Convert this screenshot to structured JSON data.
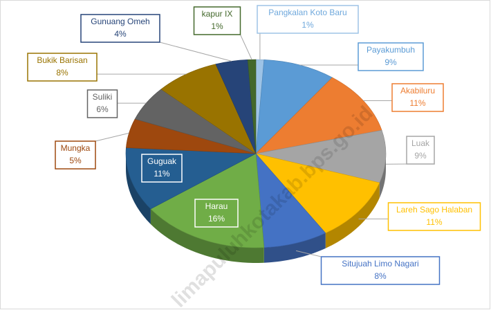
{
  "chart_data": {
    "type": "pie3d",
    "categories": [
      "Pangkalan Koto Baru",
      "Payakumbuh",
      "Akabiluru",
      "Luak",
      "Lareh Sago Halaban",
      "Situjuah Limo Nagari",
      "Harau",
      "Guguak",
      "Mungka",
      "Suliki",
      "Bukik Barisan",
      "Gunuang Omeh",
      "kapur IX"
    ],
    "values": [
      1,
      9,
      11,
      9,
      11,
      8,
      16,
      11,
      5,
      6,
      8,
      4,
      1
    ],
    "value_labels": [
      "1%",
      "9%",
      "11%",
      "9%",
      "11%",
      "8%",
      "16%",
      "11%",
      "5%",
      "6%",
      "8%",
      "4%",
      "1%"
    ],
    "colors": [
      "#9dc3e6",
      "#5b9bd5",
      "#ed7d31",
      "#a5a5a5",
      "#ffc000",
      "#4472c4",
      "#70ad47",
      "#255e91",
      "#9e480e",
      "#636363",
      "#997300",
      "#264478",
      "#43682b"
    ],
    "watermark": "limapuluhkotakab.bps.go.id"
  }
}
